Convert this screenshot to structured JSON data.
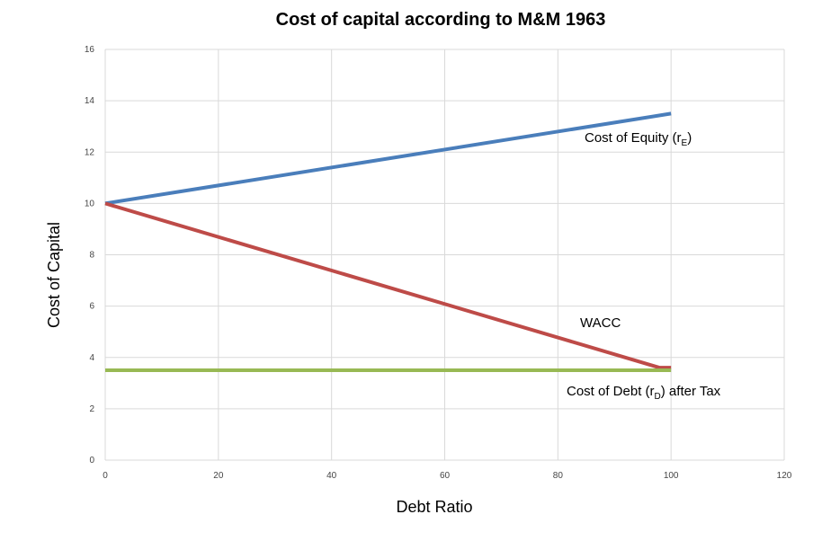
{
  "chart_data": {
    "type": "line",
    "title": "Cost of capital according to M&M 1963",
    "xlabel": "Debt Ratio",
    "ylabel": "Cost of Capital",
    "xlim": [
      0,
      120
    ],
    "ylim": [
      0,
      16
    ],
    "x_ticks": [
      "0",
      "20",
      "40",
      "60",
      "80",
      "100",
      "120"
    ],
    "y_ticks": [
      "0",
      "2",
      "4",
      "6",
      "8",
      "10",
      "12",
      "14",
      "16"
    ],
    "grid": true,
    "legend": "none",
    "series": [
      {
        "key": "equity",
        "color": "#4a7ebb",
        "x": [
          0,
          100
        ],
        "y": [
          10,
          13.5
        ]
      },
      {
        "key": "wacc",
        "color": "#be4b48",
        "x": [
          0,
          98,
          100
        ],
        "y": [
          10,
          3.6,
          3.6
        ]
      },
      {
        "key": "debt",
        "color": "#98b954",
        "x": [
          0,
          100
        ],
        "y": [
          3.5,
          3.5
        ]
      }
    ],
    "annotations": {
      "equity": {
        "text": "Cost of Equity (r",
        "sub": "E",
        "suffix": ")"
      },
      "wacc": {
        "text": "WACC"
      },
      "debt": {
        "text": "Cost of Debt (r",
        "sub": "D",
        "suffix": ") after Tax"
      }
    }
  }
}
